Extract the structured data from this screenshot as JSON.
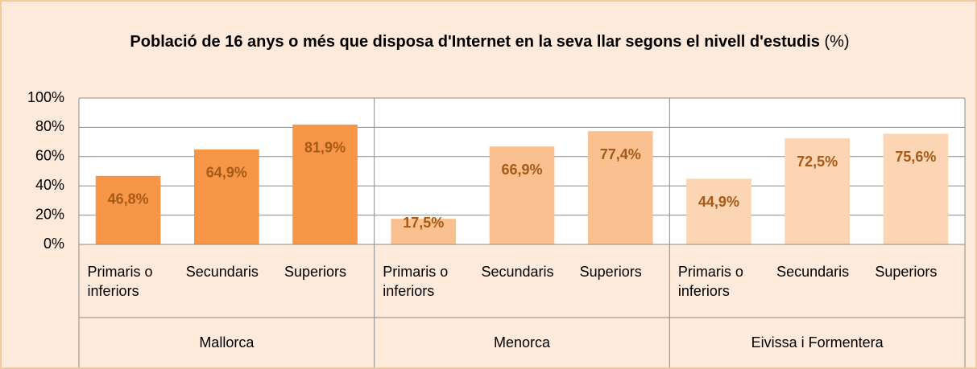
{
  "chart_data": {
    "type": "bar",
    "title": "Població de 16 anys o més que disposa d'Internet en la seva llar segons el nivell d'estudis",
    "title_unit": "(%)",
    "groups": [
      {
        "name": "Mallorca",
        "color": "#f79646",
        "categories": [
          "Primaris o inferiors",
          "Secundaris",
          "Superiors"
        ],
        "values": [
          46.8,
          64.9,
          81.9
        ],
        "value_labels": [
          "46,8%",
          "64,9%",
          "81,9%"
        ]
      },
      {
        "name": "Menorca",
        "color": "#fac090",
        "categories": [
          "Primaris o inferiors",
          "Secundaris",
          "Superiors"
        ],
        "values": [
          17.5,
          66.9,
          77.4
        ],
        "value_labels": [
          "17,5%",
          "66,9%",
          "77,4%"
        ]
      },
      {
        "name": "Eivissa i Formentera",
        "color": "#fcd5b4",
        "categories": [
          "Primaris o inferiors",
          "Secundaris",
          "Superiors"
        ],
        "values": [
          44.9,
          72.5,
          75.6
        ],
        "value_labels": [
          "44,9%",
          "72,5%",
          "75,6%"
        ]
      }
    ],
    "ylim": [
      0,
      100
    ],
    "yticks": [
      {
        "value": 0,
        "label": "0%"
      },
      {
        "value": 20,
        "label": "20%"
      },
      {
        "value": 40,
        "label": "40%"
      },
      {
        "value": 60,
        "label": "60%"
      },
      {
        "value": 80,
        "label": "80%"
      },
      {
        "value": 100,
        "label": "100%"
      }
    ],
    "grid": true
  }
}
